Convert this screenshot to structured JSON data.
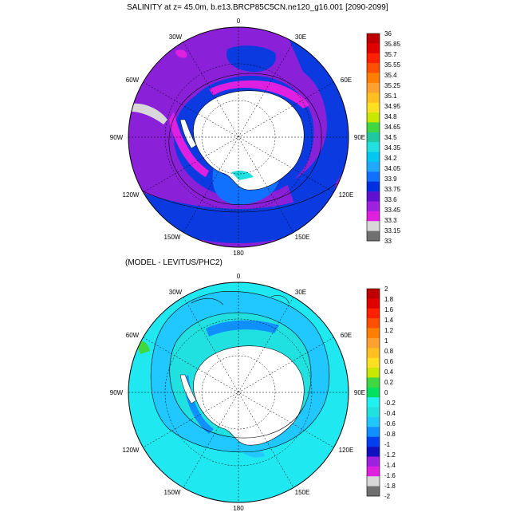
{
  "titles": {
    "top": "SALINITY at z=  45.0m, b.e13.BRCP85C5CN.ne120_g16.001 [2090-2099]",
    "bottom": "(MODEL - LEVITUS/PHC2)"
  },
  "longitude_labels": {
    "n": "0",
    "nne": "30E",
    "ene": "60E",
    "e": "90E",
    "ese": "120E",
    "sse": "150E",
    "s": "180",
    "ssw": "150W",
    "wsw": "120W",
    "w": "90W",
    "wnw": "60W",
    "nnw": "30W"
  },
  "top_colorbar": {
    "labels": [
      "36",
      "35.85",
      "35.7",
      "35.55",
      "35.4",
      "35.25",
      "35.1",
      "34.95",
      "34.8",
      "34.65",
      "34.5",
      "34.35",
      "34.2",
      "34.05",
      "33.9",
      "33.75",
      "33.6",
      "33.45",
      "33.3",
      "33.15",
      "33"
    ],
    "colors": [
      "#c00000",
      "#e00000",
      "#ff2000",
      "#ff5000",
      "#ff8000",
      "#ffa030",
      "#ffc020",
      "#ffe020",
      "#c8e800",
      "#40d840",
      "#20c8a0",
      "#20e0e0",
      "#00c8f0",
      "#20a8ff",
      "#1070ff",
      "#0030e0",
      "#6010d0",
      "#a020e0",
      "#e020e0",
      "#d8d8d8",
      "#707070"
    ]
  },
  "bottom_colorbar": {
    "labels": [
      "2",
      "1.8",
      "1.6",
      "1.4",
      "1.2",
      "1",
      "0.8",
      "0.6",
      "0.4",
      "0.2",
      "0",
      "-0.2",
      "-0.4",
      "-0.6",
      "-0.8",
      "-1",
      "-1.2",
      "-1.4",
      "-1.6",
      "-1.8",
      "-2"
    ],
    "colors": [
      "#c00000",
      "#e00000",
      "#ff2000",
      "#ff5000",
      "#ff8000",
      "#ffa030",
      "#ffc020",
      "#ffe020",
      "#c8e800",
      "#40d840",
      "#00e060",
      "#20f0f0",
      "#20e0e0",
      "#20c8ff",
      "#1090ff",
      "#0040f0",
      "#1010c0",
      "#a020e0",
      "#e020e0",
      "#d8d8d8",
      "#707070"
    ]
  },
  "colors": {
    "top_background": "#8a20d8",
    "top_inner_ring": "#0a3ae0",
    "top_coastal": "#e020e0",
    "bottom_background": "#20e8f0",
    "bottom_band": "#20c8ff",
    "land": "#ffffff"
  }
}
